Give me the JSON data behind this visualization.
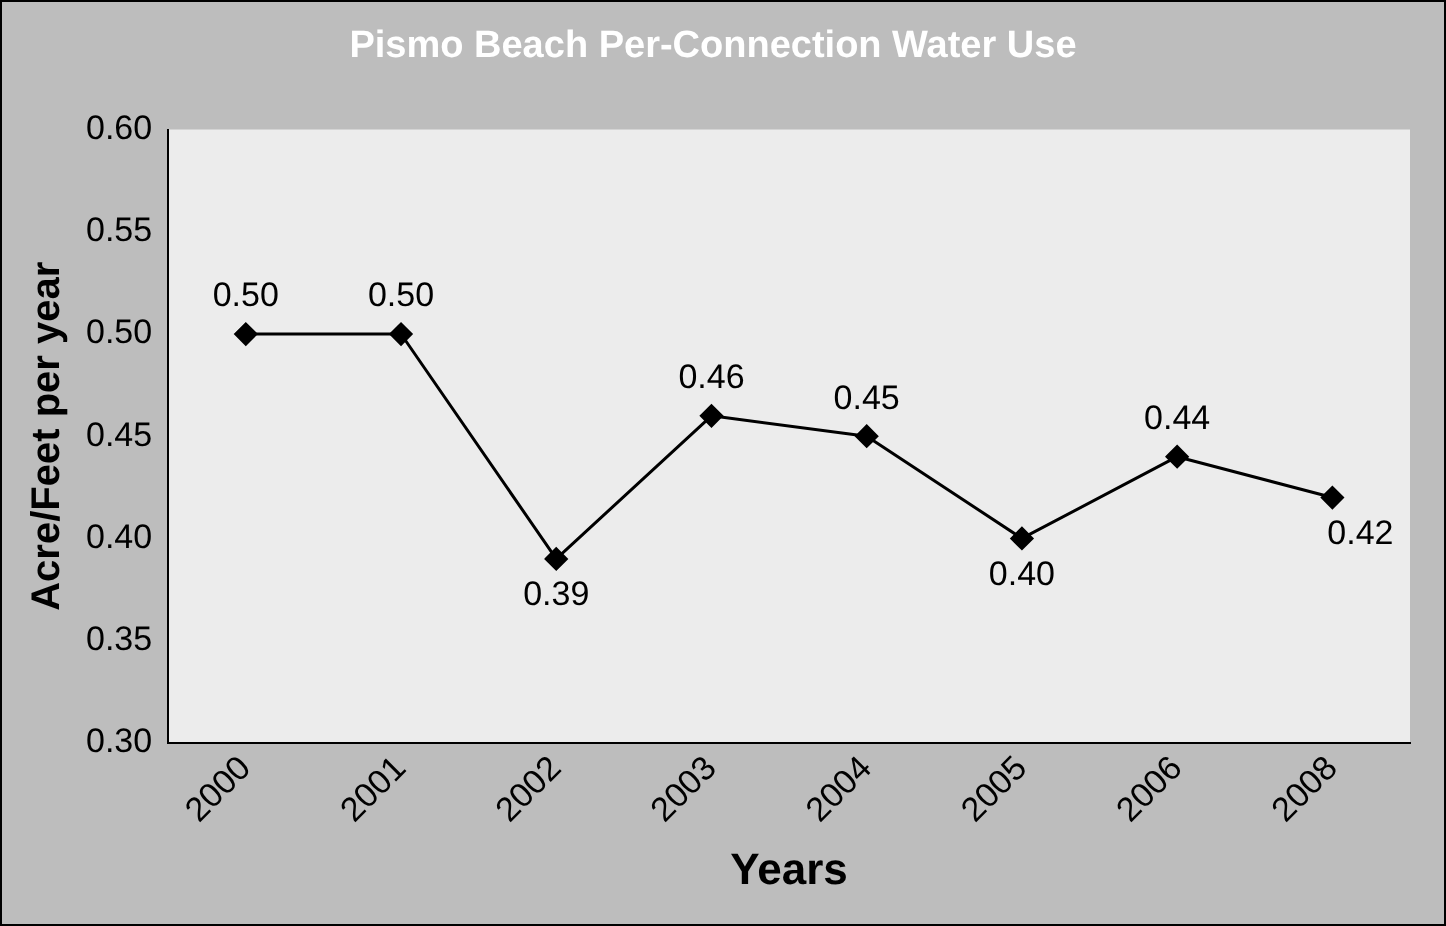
{
  "chart_data": {
    "type": "line",
    "title": "Pismo Beach Per-Connection Water Use",
    "xlabel": "Years",
    "ylabel": "Acre/Feet per year",
    "categories": [
      "2000",
      "2001",
      "2002",
      "2003",
      "2004",
      "2005",
      "2006",
      "2008"
    ],
    "series": [
      {
        "color": "#000000",
        "values": [
          0.5,
          0.5,
          0.39,
          0.46,
          0.45,
          0.4,
          0.44,
          0.42
        ],
        "value_labels": [
          "0.50",
          "0.50",
          "0.39",
          "0.46",
          "0.45",
          "0.40",
          "0.44",
          "0.42"
        ]
      }
    ],
    "ylim": [
      0.3,
      0.6
    ],
    "yticks": [
      {
        "value": 0.3,
        "label": "0.30"
      },
      {
        "value": 0.35,
        "label": "0.35"
      },
      {
        "value": 0.4,
        "label": "0.40"
      },
      {
        "value": 0.45,
        "label": "0.45"
      },
      {
        "value": 0.5,
        "label": "0.50"
      },
      {
        "value": 0.55,
        "label": "0.55"
      },
      {
        "value": 0.6,
        "label": "0.60"
      }
    ],
    "grid": false,
    "legend": false,
    "marker": "diamond",
    "line_style": "solid"
  }
}
